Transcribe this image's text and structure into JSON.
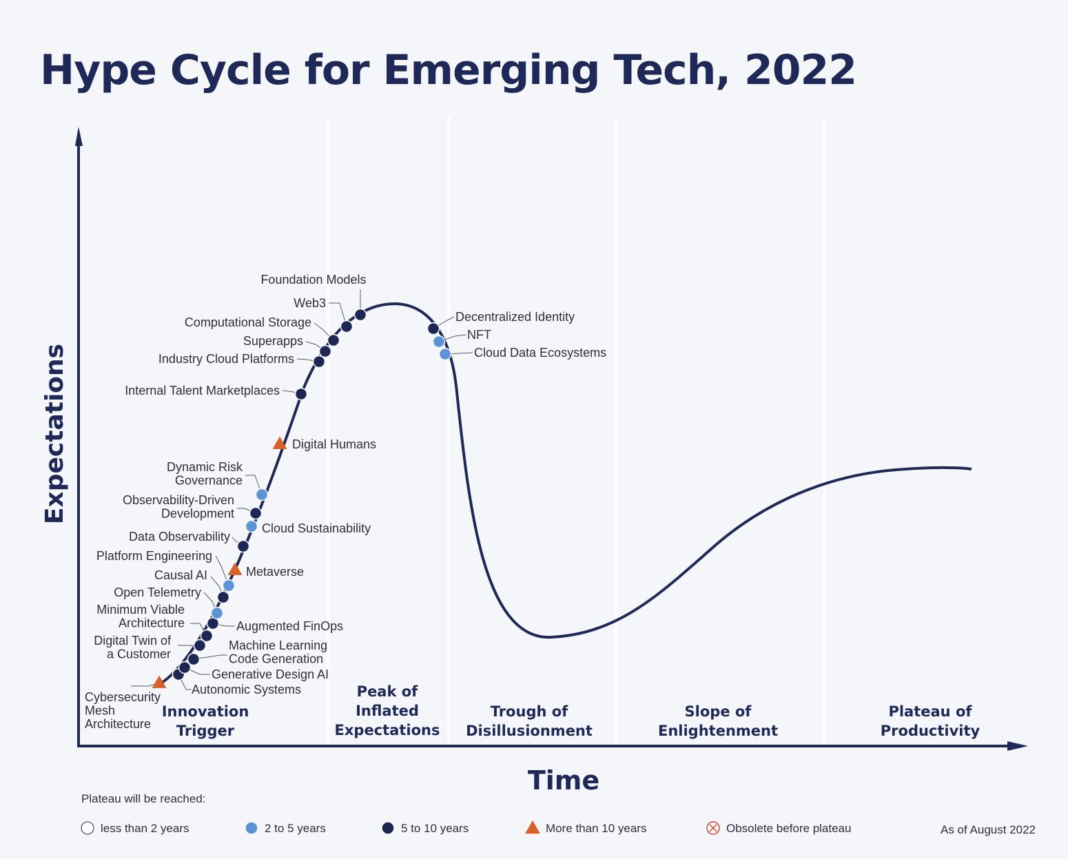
{
  "title": "Hype Cycle for Emerging Tech, 2022",
  "colors": {
    "navy": "#1f2957",
    "light_blue": "#5a93d6",
    "dark_navy_dot": "#1e2753",
    "orange": "#d8612a",
    "obsolete_red": "#d6442c"
  },
  "chart_data": {
    "type": "line",
    "title": "Hype Cycle for Emerging Tech, 2022",
    "xlabel": "Time",
    "ylabel": "Expectations",
    "phases": [
      {
        "key": "innovation",
        "lines": [
          "Innovation",
          "Trigger"
        ]
      },
      {
        "key": "peak",
        "lines": [
          "Peak of",
          "Inflated",
          "Expectations"
        ]
      },
      {
        "key": "trough",
        "lines": [
          "Trough of",
          "Disillusionment"
        ]
      },
      {
        "key": "slope",
        "lines": [
          "Slope of",
          "Enlightenment"
        ]
      },
      {
        "key": "plateau",
        "lines": [
          "Plateau of",
          "Productivity"
        ]
      }
    ],
    "legend_title": "Plateau will be reached:",
    "legend": [
      {
        "key": "lt2",
        "label": "less than 2 years",
        "marker": "open-circle"
      },
      {
        "key": "2to5",
        "label": "2 to 5 years",
        "marker": "light-blue-circle"
      },
      {
        "key": "5to10",
        "label": "5 to 10 years",
        "marker": "navy-circle"
      },
      {
        "key": "gt10",
        "label": "More than 10 years",
        "marker": "orange-triangle"
      },
      {
        "key": "obsolete",
        "label": "Obsolete before plateau",
        "marker": "crossed-circle"
      }
    ],
    "technologies": [
      {
        "name": "Cybersecurity Mesh Architecture",
        "lines": [
          "Cybersecurity",
          "Mesh",
          "Architecture"
        ],
        "category": "gt10"
      },
      {
        "name": "Autonomic Systems",
        "lines": [
          "Autonomic Systems"
        ],
        "category": "5to10"
      },
      {
        "name": "Generative Design AI",
        "lines": [
          "Generative Design AI"
        ],
        "category": "5to10"
      },
      {
        "name": "Machine Learning Code Generation",
        "lines": [
          "Machine Learning",
          "Code Generation"
        ],
        "category": "5to10"
      },
      {
        "name": "Digital Twin of a Customer",
        "lines": [
          "Digital Twin of",
          "a Customer"
        ],
        "category": "5to10"
      },
      {
        "name": "Minimum Viable Architecture",
        "lines": [
          "Minimum Viable",
          "Architecture"
        ],
        "category": "5to10"
      },
      {
        "name": "Augmented FinOps",
        "lines": [
          "Augmented FinOps"
        ],
        "category": "5to10"
      },
      {
        "name": "Open Telemetry",
        "lines": [
          "Open Telemetry"
        ],
        "category": "2to5"
      },
      {
        "name": "Causal AI",
        "lines": [
          "Causal AI"
        ],
        "category": "5to10"
      },
      {
        "name": "Platform Engineering",
        "lines": [
          "Platform Engineering"
        ],
        "category": "2to5"
      },
      {
        "name": "Metaverse",
        "lines": [
          "Metaverse"
        ],
        "category": "gt10"
      },
      {
        "name": "Data Observability",
        "lines": [
          "Data Observability"
        ],
        "category": "5to10"
      },
      {
        "name": "Cloud Sustainability",
        "lines": [
          "Cloud Sustainability"
        ],
        "category": "2to5"
      },
      {
        "name": "Observability-Driven Development",
        "lines": [
          "Observability-Driven",
          "Development"
        ],
        "category": "5to10"
      },
      {
        "name": "Dynamic Risk Governance",
        "lines": [
          "Dynamic Risk",
          "Governance"
        ],
        "category": "2to5"
      },
      {
        "name": "Digital Humans",
        "lines": [
          "Digital Humans"
        ],
        "category": "gt10"
      },
      {
        "name": "Internal Talent Marketplaces",
        "lines": [
          "Internal Talent Marketplaces"
        ],
        "category": "5to10"
      },
      {
        "name": "Industry Cloud Platforms",
        "lines": [
          "Industry Cloud Platforms"
        ],
        "category": "5to10"
      },
      {
        "name": "Superapps",
        "lines": [
          "Superapps"
        ],
        "category": "5to10"
      },
      {
        "name": "Computational Storage",
        "lines": [
          "Computational Storage"
        ],
        "category": "5to10"
      },
      {
        "name": "Web3",
        "lines": [
          "Web3"
        ],
        "category": "5to10"
      },
      {
        "name": "Foundation Models",
        "lines": [
          "Foundation Models"
        ],
        "category": "5to10"
      },
      {
        "name": "Decentralized Identity",
        "lines": [
          "Decentralized Identity"
        ],
        "category": "5to10"
      },
      {
        "name": "NFT",
        "lines": [
          "NFT"
        ],
        "category": "2to5"
      },
      {
        "name": "Cloud Data Ecosystems",
        "lines": [
          "Cloud Data Ecosystems"
        ],
        "category": "2to5"
      }
    ],
    "grid": false,
    "legend_position": "bottom"
  },
  "footnote": "As of August 2022"
}
